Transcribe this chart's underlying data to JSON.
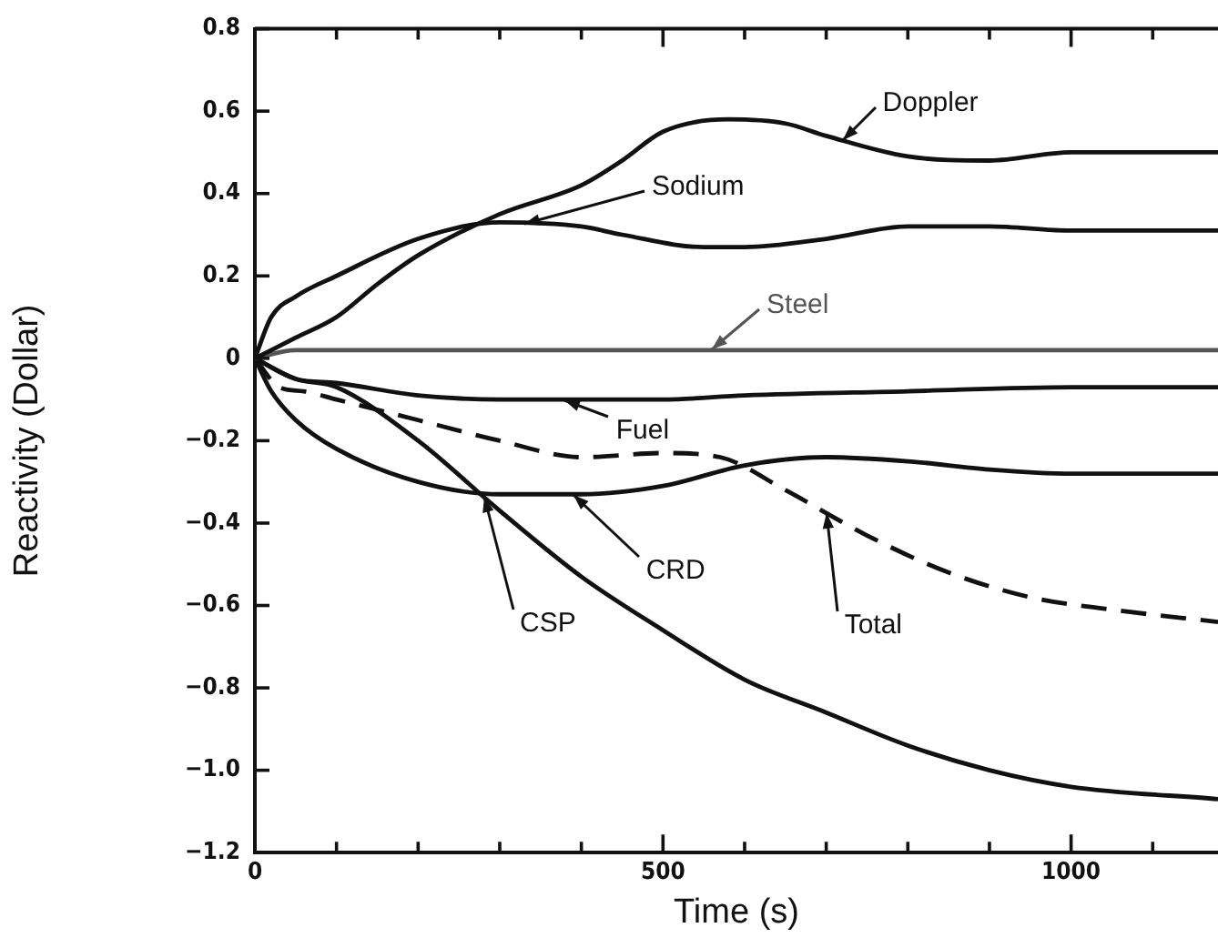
{
  "chart_data": {
    "type": "line",
    "xlabel": "Time (s)",
    "ylabel": "Reactivity (Dollar)",
    "xlim": [
      0,
      1180
    ],
    "ylim": [
      -1.2,
      0.8
    ],
    "xticks": [
      0,
      {
        "value": 100,
        "label": null
      },
      {
        "value": 200,
        "label": null
      },
      {
        "value": 300,
        "label": null
      },
      {
        "value": 400,
        "label": null
      },
      500,
      {
        "value": 600,
        "label": null
      },
      {
        "value": 700,
        "label": null
      },
      {
        "value": 800,
        "label": null
      },
      {
        "value": 900,
        "label": null
      },
      1000,
      {
        "value": 1100,
        "label": null
      }
    ],
    "yticks": [
      0.8,
      0.6,
      0.4,
      0.2,
      0,
      {
        "value": -0.2,
        "label": "−0.2"
      },
      {
        "value": -0.4,
        "label": "−0.4"
      },
      {
        "value": -0.6,
        "label": "−0.6"
      },
      {
        "value": -0.8,
        "label": "−0.8"
      },
      {
        "value": -1.0,
        "label": "−1.0"
      },
      {
        "value": -1.2,
        "label": "−1.2"
      }
    ],
    "grid": false,
    "legend": false,
    "marker": "none",
    "series": [
      {
        "name": "Doppler",
        "color": "#111111",
        "x": [
          0,
          50,
          100,
          150,
          200,
          300,
          400,
          450,
          500,
          580,
          650,
          700,
          800,
          900,
          1000,
          1180
        ],
        "values": [
          0,
          0.05,
          0.1,
          0.18,
          0.25,
          0.35,
          0.42,
          0.48,
          0.55,
          0.58,
          0.57,
          0.54,
          0.49,
          0.48,
          0.5,
          0.5
        ]
      },
      {
        "name": "Sodium",
        "color": "#111111",
        "x": [
          0,
          20,
          50,
          100,
          200,
          300,
          400,
          450,
          550,
          600,
          700,
          800,
          900,
          1000,
          1180
        ],
        "values": [
          0,
          0.1,
          0.15,
          0.2,
          0.29,
          0.33,
          0.32,
          0.3,
          0.27,
          0.27,
          0.29,
          0.32,
          0.32,
          0.31,
          0.31
        ]
      },
      {
        "name": "Steel",
        "color": "#555555",
        "x": [
          0,
          50,
          1180
        ],
        "values": [
          0,
          0.02,
          0.02
        ]
      },
      {
        "name": "Fuel",
        "color": "#111111",
        "x": [
          0,
          50,
          100,
          200,
          300,
          500,
          600,
          800,
          1000,
          1180
        ],
        "values": [
          0,
          -0.05,
          -0.06,
          -0.09,
          -0.1,
          -0.1,
          -0.09,
          -0.08,
          -0.07,
          -0.07
        ]
      },
      {
        "name": "CRD",
        "color": "#111111",
        "x": [
          0,
          20,
          50,
          100,
          200,
          300,
          400,
          500,
          600,
          700,
          800,
          900,
          1000,
          1180
        ],
        "values": [
          0,
          -0.08,
          -0.15,
          -0.22,
          -0.3,
          -0.33,
          -0.33,
          -0.31,
          -0.26,
          -0.24,
          -0.25,
          -0.27,
          -0.28,
          -0.28
        ]
      },
      {
        "name": "Total",
        "color": "#111111",
        "line_style": "dashed",
        "x": [
          0,
          30,
          60,
          100,
          200,
          300,
          400,
          500,
          570,
          650,
          750,
          850,
          950,
          1050,
          1180
        ],
        "values": [
          0,
          -0.07,
          -0.08,
          -0.1,
          -0.15,
          -0.2,
          -0.24,
          -0.23,
          -0.24,
          -0.32,
          -0.43,
          -0.52,
          -0.58,
          -0.61,
          -0.64
        ]
      },
      {
        "name": "CSP",
        "color": "#111111",
        "x": [
          0,
          50,
          100,
          200,
          300,
          400,
          500,
          600,
          700,
          800,
          900,
          1000,
          1180
        ],
        "values": [
          0,
          -0.05,
          -0.07,
          -0.2,
          -0.37,
          -0.53,
          -0.66,
          -0.78,
          -0.86,
          -0.94,
          -1.0,
          -1.04,
          -1.07
        ]
      }
    ]
  }
}
